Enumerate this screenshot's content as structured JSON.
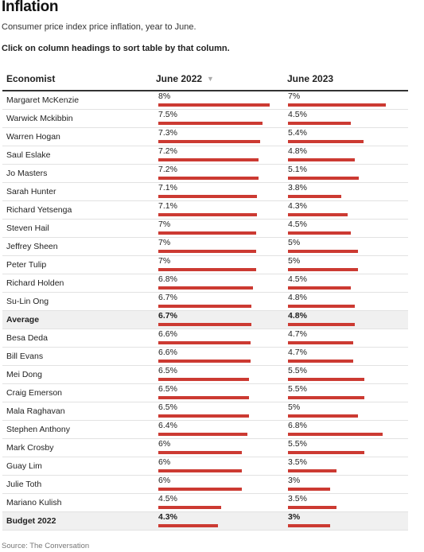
{
  "title": "Inflation",
  "subtitle": "Consumer price index price inflation, year to June.",
  "instruction": "Click on column headings to sort table by that column.",
  "source": "Source: The Conversation",
  "colors": {
    "bar": "#cc3a32",
    "highlight_row": "#f0f0f0"
  },
  "chart_data": {
    "type": "table",
    "columns": [
      "Economist",
      "June 2022",
      "June 2023"
    ],
    "sorted_by": "June 2022",
    "sort_icon": "sort-down-icon",
    "bar_scale_max": 8,
    "rows": [
      {
        "name": "Margaret McKenzie",
        "y2022": 8,
        "y2023": 7,
        "y2022_label": "8%",
        "y2023_label": "7%",
        "highlight": false
      },
      {
        "name": "Warwick Mckibbin",
        "y2022": 7.5,
        "y2023": 4.5,
        "y2022_label": "7.5%",
        "y2023_label": "4.5%",
        "highlight": false
      },
      {
        "name": "Warren Hogan",
        "y2022": 7.3,
        "y2023": 5.4,
        "y2022_label": "7.3%",
        "y2023_label": "5.4%",
        "highlight": false
      },
      {
        "name": "Saul Eslake",
        "y2022": 7.2,
        "y2023": 4.8,
        "y2022_label": "7.2%",
        "y2023_label": "4.8%",
        "highlight": false
      },
      {
        "name": "Jo Masters",
        "y2022": 7.2,
        "y2023": 5.1,
        "y2022_label": "7.2%",
        "y2023_label": "5.1%",
        "highlight": false
      },
      {
        "name": "Sarah Hunter",
        "y2022": 7.1,
        "y2023": 3.8,
        "y2022_label": "7.1%",
        "y2023_label": "3.8%",
        "highlight": false
      },
      {
        "name": "Richard Yetsenga",
        "y2022": 7.1,
        "y2023": 4.3,
        "y2022_label": "7.1%",
        "y2023_label": "4.3%",
        "highlight": false
      },
      {
        "name": "Steven Hail",
        "y2022": 7,
        "y2023": 4.5,
        "y2022_label": "7%",
        "y2023_label": "4.5%",
        "highlight": false
      },
      {
        "name": "Jeffrey Sheen",
        "y2022": 7,
        "y2023": 5,
        "y2022_label": "7%",
        "y2023_label": "5%",
        "highlight": false
      },
      {
        "name": "Peter Tulip",
        "y2022": 7,
        "y2023": 5,
        "y2022_label": "7%",
        "y2023_label": "5%",
        "highlight": false
      },
      {
        "name": "Richard Holden",
        "y2022": 6.8,
        "y2023": 4.5,
        "y2022_label": "6.8%",
        "y2023_label": "4.5%",
        "highlight": false
      },
      {
        "name": "Su-Lin Ong",
        "y2022": 6.7,
        "y2023": 4.8,
        "y2022_label": "6.7%",
        "y2023_label": "4.8%",
        "highlight": false
      },
      {
        "name": "Average",
        "y2022": 6.7,
        "y2023": 4.8,
        "y2022_label": "6.7%",
        "y2023_label": "4.8%",
        "highlight": true
      },
      {
        "name": "Besa Deda",
        "y2022": 6.6,
        "y2023": 4.7,
        "y2022_label": "6.6%",
        "y2023_label": "4.7%",
        "highlight": false
      },
      {
        "name": "Bill Evans",
        "y2022": 6.6,
        "y2023": 4.7,
        "y2022_label": "6.6%",
        "y2023_label": "4.7%",
        "highlight": false
      },
      {
        "name": "Mei Dong",
        "y2022": 6.5,
        "y2023": 5.5,
        "y2022_label": "6.5%",
        "y2023_label": "5.5%",
        "highlight": false
      },
      {
        "name": "Craig Emerson",
        "y2022": 6.5,
        "y2023": 5.5,
        "y2022_label": "6.5%",
        "y2023_label": "5.5%",
        "highlight": false
      },
      {
        "name": "Mala Raghavan",
        "y2022": 6.5,
        "y2023": 5,
        "y2022_label": "6.5%",
        "y2023_label": "5%",
        "highlight": false
      },
      {
        "name": "Stephen Anthony",
        "y2022": 6.4,
        "y2023": 6.8,
        "y2022_label": "6.4%",
        "y2023_label": "6.8%",
        "highlight": false
      },
      {
        "name": "Mark Crosby",
        "y2022": 6,
        "y2023": 5.5,
        "y2022_label": "6%",
        "y2023_label": "5.5%",
        "highlight": false
      },
      {
        "name": "Guay Lim",
        "y2022": 6,
        "y2023": 3.5,
        "y2022_label": "6%",
        "y2023_label": "3.5%",
        "highlight": false
      },
      {
        "name": "Julie Toth",
        "y2022": 6,
        "y2023": 3,
        "y2022_label": "6%",
        "y2023_label": "3%",
        "highlight": false
      },
      {
        "name": "Mariano Kulish",
        "y2022": 4.5,
        "y2023": 3.5,
        "y2022_label": "4.5%",
        "y2023_label": "3.5%",
        "highlight": false
      },
      {
        "name": "Budget 2022",
        "y2022": 4.3,
        "y2023": 3,
        "y2022_label": "4.3%",
        "y2023_label": "3%",
        "highlight": true
      }
    ]
  }
}
